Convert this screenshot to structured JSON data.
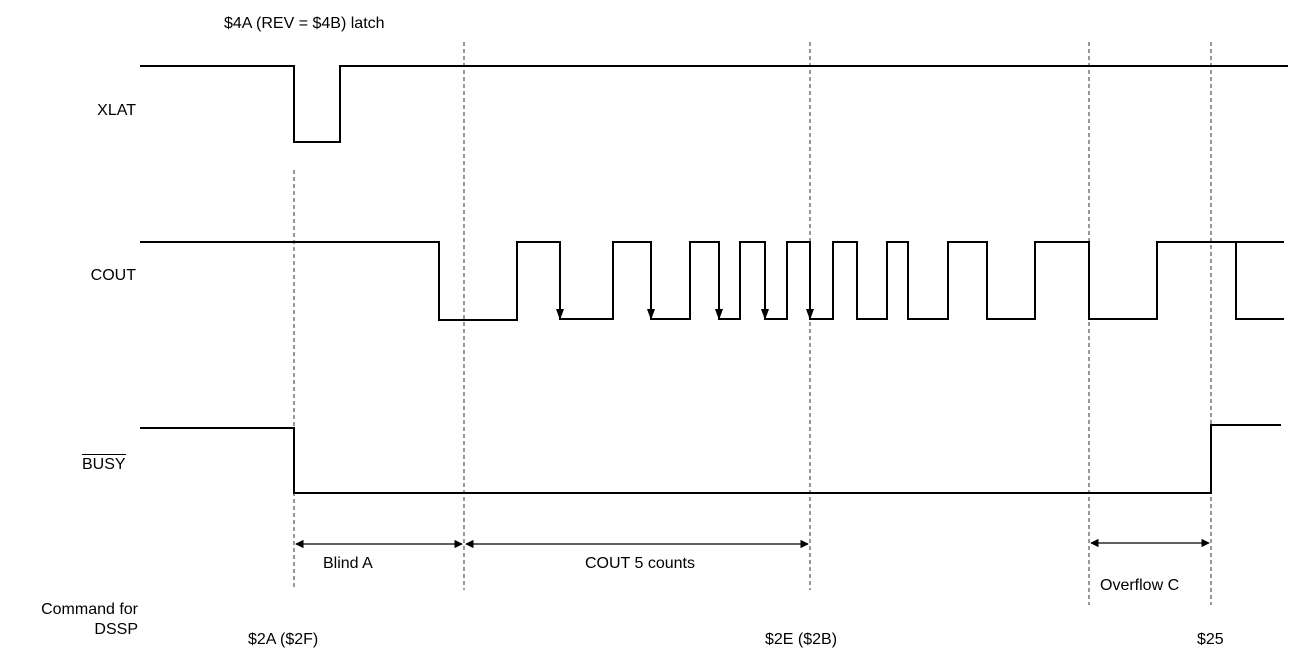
{
  "title": "$4A (REV = $4B) latch",
  "signals": {
    "xlat": "XLAT",
    "cout": "COUT",
    "busy": "BUSY"
  },
  "intervals": {
    "blind_a": "Blind A",
    "cout_counts": "COUT 5 counts",
    "overflow_c": "Overflow C"
  },
  "command": {
    "label_line1": "Command for",
    "label_line2": "DSSP",
    "cmd1": "$2A ($2F)",
    "cmd2": "$2E ($2B)",
    "cmd3": "$25"
  },
  "colors": {
    "line": "#000000",
    "background": "#ffffff"
  }
}
